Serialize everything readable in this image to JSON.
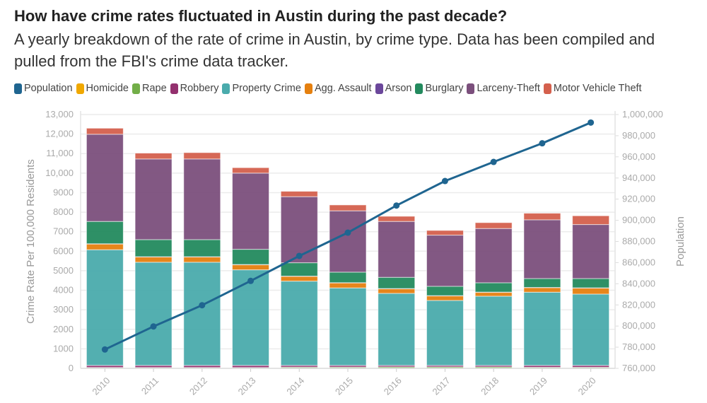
{
  "title": "How have crime rates fluctuated in Austin during the past decade?",
  "subtitle": "A yearly breakdown of the rate of crime in Austin, by crime type. Data has been compiled and pulled from the FBI's crime data tracker.",
  "chart_data": {
    "type": "bar",
    "title": "How have crime rates fluctuated in Austin during the past decade?",
    "xlabel": "",
    "ylabel": "Crime Rate Per 100,000 Residents",
    "y2label": "Population",
    "ylim": [
      0,
      13000
    ],
    "y2lim": [
      760000,
      1000000
    ],
    "yticks": [
      "0",
      "1000",
      "2000",
      "3000",
      "4000",
      "5000",
      "6000",
      "7000",
      "8000",
      "9000",
      "10,000",
      "11,000",
      "12,000",
      "13,000"
    ],
    "y2ticks": [
      "760,000",
      "780,000",
      "800,000",
      "820,000",
      "840,000",
      "860,000",
      "880,000",
      "900,000",
      "920,000",
      "940,000",
      "960,000",
      "980,000",
      "1,000,000"
    ],
    "legend_position": "top-left",
    "grid": true,
    "categories": [
      "2010",
      "2011",
      "2012",
      "2013",
      "2014",
      "2015",
      "2016",
      "2017",
      "2018",
      "2019",
      "2020"
    ],
    "series": [
      {
        "name": "Homicide",
        "color": "#f0a800",
        "values": [
          5,
          4,
          4,
          3,
          3,
          4,
          4,
          4,
          3,
          4,
          5
        ]
      },
      {
        "name": "Rape",
        "color": "#72ae48",
        "values": [
          40,
          40,
          40,
          40,
          60,
          60,
          70,
          70,
          70,
          50,
          50
        ]
      },
      {
        "name": "Robbery",
        "color": "#93306e",
        "values": [
          105,
          106,
          106,
          107,
          87,
          86,
          76,
          76,
          77,
          96,
          95
        ]
      },
      {
        "name": "Property Crime",
        "color": "#4aabac",
        "values": [
          5925,
          5285,
          5285,
          4897,
          4317,
          3970,
          3691,
          3328,
          3546,
          3751,
          3654
        ]
      },
      {
        "name": "Agg. Assault",
        "color": "#e5800f",
        "values": [
          302,
          279,
          279,
          268,
          254,
          264,
          242,
          242,
          205,
          240,
          316
        ]
      },
      {
        "name": "Arson",
        "color": "#6b479b",
        "values": [
          5,
          5,
          5,
          5,
          5,
          5,
          5,
          5,
          5,
          5,
          5
        ]
      },
      {
        "name": "Burglary",
        "color": "#238a5e",
        "values": [
          1143,
          875,
          875,
          778,
          683,
          539,
          575,
          478,
          478,
          455,
          476
        ]
      },
      {
        "name": "Larceny-Theft",
        "color": "#7b4f7c",
        "values": [
          4465,
          4131,
          4131,
          3902,
          3384,
          3141,
          2862,
          2620,
          2779,
          3008,
          2765
        ]
      },
      {
        "name": "Motor Vehicle Theft",
        "color": "#d4604d",
        "values": [
          310,
          300,
          325,
          279,
          276,
          301,
          265,
          242,
          301,
          337,
          449
        ]
      }
    ],
    "line_series": {
      "name": "Population",
      "color": "#1f6590",
      "axis": "right",
      "values": [
        777850,
        799640,
        819700,
        842700,
        866300,
        888350,
        913960,
        937150,
        955200,
        972800,
        992430
      ]
    }
  }
}
